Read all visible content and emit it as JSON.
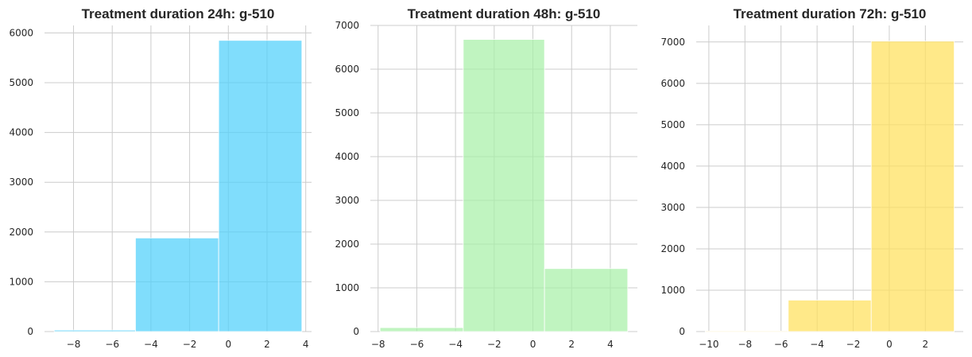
{
  "chart_data": [
    {
      "type": "bar",
      "title": "Treatment duration 24h: g-510",
      "color": "#4fd0fb",
      "grid": true,
      "bins": [
        {
          "x0": -9.0,
          "x1": -4.8,
          "value": 30
        },
        {
          "x0": -4.8,
          "x1": -0.5,
          "value": 1880
        },
        {
          "x0": -0.5,
          "x1": 3.8,
          "value": 5850
        }
      ],
      "xlim": [
        -9.5,
        4.3
      ],
      "ylim": [
        0,
        6150
      ],
      "xticks": [
        -8,
        -6,
        -4,
        -2,
        0,
        2,
        4
      ],
      "yticks": [
        0,
        1000,
        2000,
        3000,
        4000,
        5000,
        6000
      ],
      "xtick_labels": [
        "−8",
        "−6",
        "−4",
        "−2",
        "0",
        "2",
        "4"
      ],
      "ytick_labels": [
        "0",
        "1000",
        "2000",
        "3000",
        "4000",
        "5000",
        "6000"
      ]
    },
    {
      "type": "bar",
      "title": "Treatment duration 48h: g-510",
      "color": "#a8f0a8",
      "grid": true,
      "bins": [
        {
          "x0": -7.9,
          "x1": -3.6,
          "value": 90
        },
        {
          "x0": -3.6,
          "x1": 0.6,
          "value": 6680
        },
        {
          "x0": 0.6,
          "x1": 4.9,
          "value": 1440
        }
      ],
      "xlim": [
        -8.4,
        5.4
      ],
      "ylim": [
        0,
        7000
      ],
      "xticks": [
        -8,
        -6,
        -4,
        -2,
        0,
        2,
        4
      ],
      "yticks": [
        0,
        1000,
        2000,
        3000,
        4000,
        5000,
        6000,
        7000
      ],
      "xtick_labels": [
        "−8",
        "−6",
        "−4",
        "−2",
        "0",
        "2",
        "4"
      ],
      "ytick_labels": [
        "0",
        "1000",
        "2000",
        "3000",
        "4000",
        "5000",
        "6000",
        "7000"
      ]
    },
    {
      "type": "bar",
      "title": "Treatment duration 72h: g-510",
      "color": "#ffe05c",
      "grid": true,
      "bins": [
        {
          "x0": -10.2,
          "x1": -5.6,
          "value": 10
        },
        {
          "x0": -5.6,
          "x1": -1.0,
          "value": 760
        },
        {
          "x0": -1.0,
          "x1": 3.6,
          "value": 7020
        }
      ],
      "xlim": [
        -10.7,
        4.1
      ],
      "ylim": [
        0,
        7400
      ],
      "xticks": [
        -10,
        -8,
        -6,
        -4,
        -2,
        0,
        2
      ],
      "yticks": [
        0,
        1000,
        2000,
        3000,
        4000,
        5000,
        6000,
        7000
      ],
      "xtick_labels": [
        "−10",
        "−8",
        "−6",
        "−4",
        "−2",
        "0",
        "2"
      ],
      "ytick_labels": [
        "0",
        "1000",
        "2000",
        "3000",
        "4000",
        "5000",
        "6000",
        "7000"
      ]
    }
  ]
}
